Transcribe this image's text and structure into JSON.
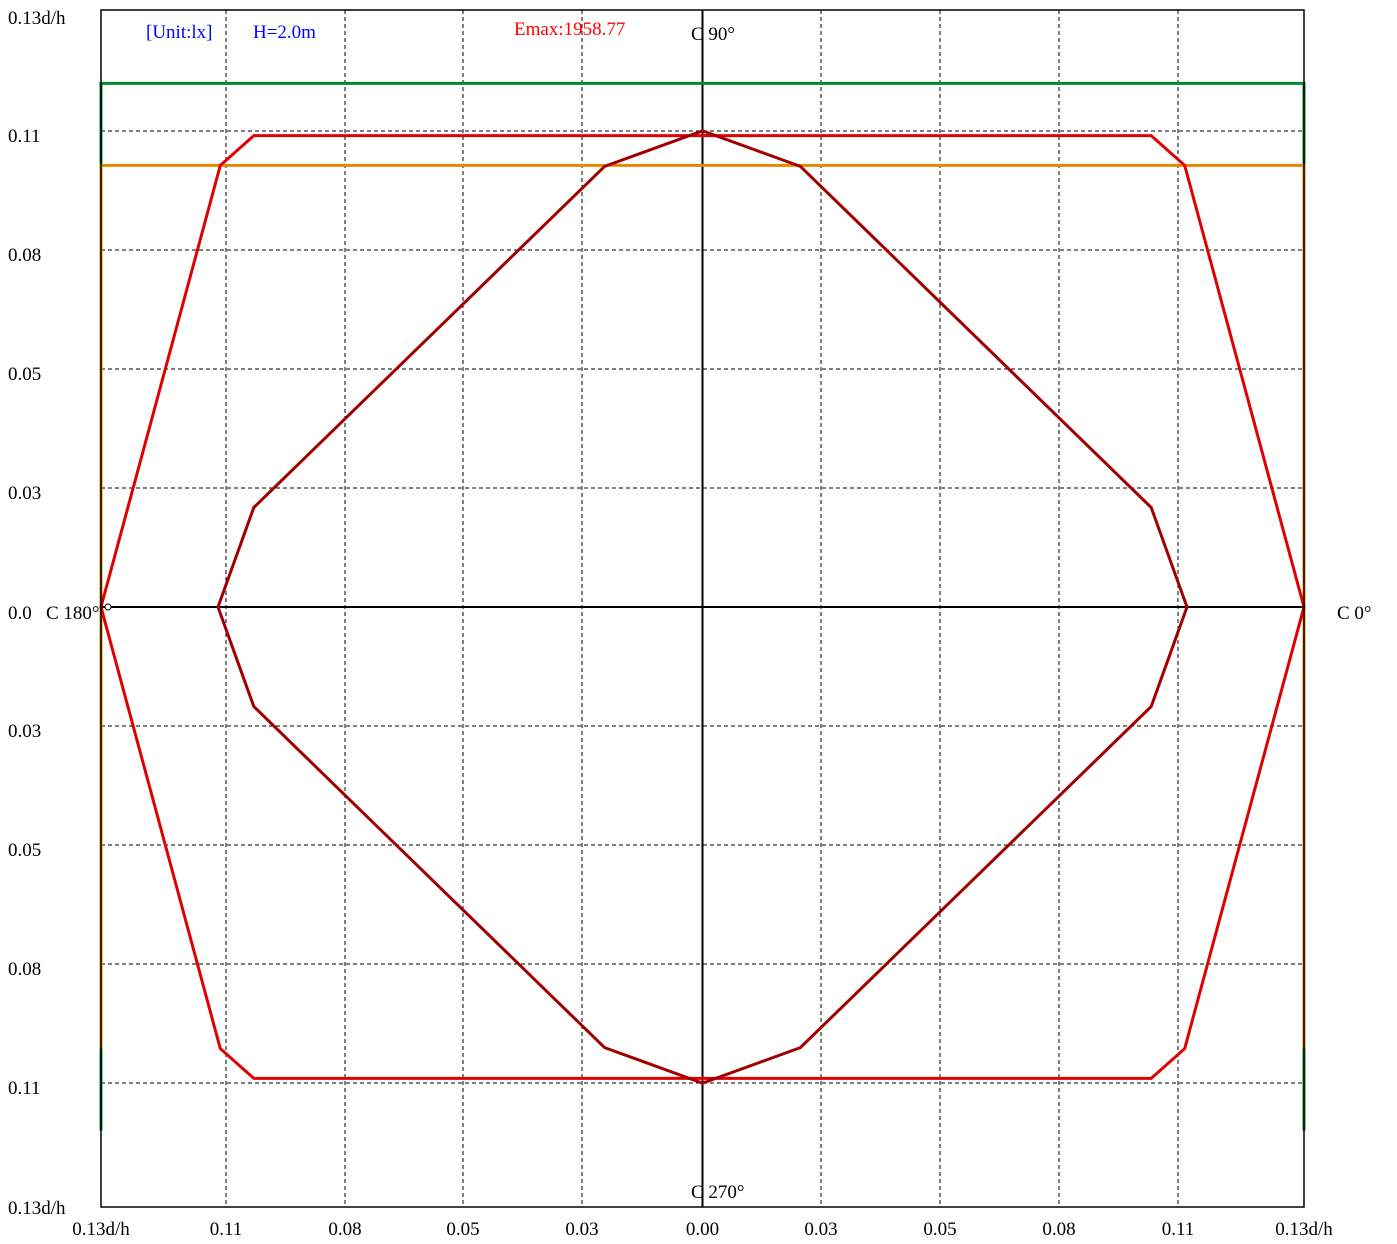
{
  "chart_data": {
    "type": "line",
    "title": "",
    "unit_label": "[Unit:lx]",
    "height_label": "H=2.0m",
    "emax_label": "Emax:1958.77",
    "direction_labels": {
      "top": "C 90°",
      "bottom": "C 270°",
      "right": "C 0°",
      "left": "C 180°"
    },
    "x_tick_labels": [
      "0.13d/h",
      "0.11",
      "0.08",
      "0.05",
      "0.03",
      "0.00",
      "0.03",
      "0.05",
      "0.08",
      "0.11",
      "0.13d/h"
    ],
    "y_tick_labels": [
      "0.13d/h",
      "0.11",
      "0.08",
      "0.05",
      "0.03",
      "0.0",
      "0.03",
      "0.05",
      "0.08",
      "0.11",
      "0.13d/h"
    ],
    "xlim": [
      -0.126,
      0.126
    ],
    "ylim": [
      -0.126,
      0.126
    ],
    "grid": true,
    "colors": {
      "unit_text": "#0000ff",
      "emax_text": "#ff0000",
      "green": "#008a2e",
      "orange": "#e58a00",
      "red": "#e00000",
      "darkred": "#a00000"
    },
    "series": [
      {
        "color": "#008a2e",
        "closed": false,
        "points": [
          [
            -0.126,
            -0.1105
          ],
          [
            -0.126,
            0.1105
          ],
          [
            0.126,
            0.1105
          ],
          [
            0.126,
            -0.1105
          ]
        ]
      },
      {
        "color": "#e58a00",
        "closed": false,
        "points": [
          [
            -0.126,
            -0.0932
          ],
          [
            -0.126,
            0.0932
          ],
          [
            0.126,
            0.0932
          ],
          [
            0.126,
            -0.0932
          ]
        ]
      },
      {
        "color": "#e00000",
        "closed": true,
        "points": [
          [
            0.126,
            0
          ],
          [
            0.101,
            0.0932
          ],
          [
            0.094,
            0.0995
          ],
          [
            -0.094,
            0.0995
          ],
          [
            -0.101,
            0.0932
          ],
          [
            -0.126,
            0
          ],
          [
            -0.101,
            -0.0932
          ],
          [
            -0.094,
            -0.0995
          ],
          [
            0.094,
            -0.0995
          ],
          [
            0.101,
            -0.0932
          ]
        ]
      },
      {
        "color": "#a00000",
        "closed": true,
        "points": [
          [
            0.1015,
            0
          ],
          [
            0.094,
            0.021
          ],
          [
            0.0205,
            0.093
          ],
          [
            0,
            0.1005
          ],
          [
            -0.0205,
            0.093
          ],
          [
            -0.094,
            0.021
          ],
          [
            -0.1015,
            0
          ],
          [
            -0.094,
            -0.021
          ],
          [
            -0.0205,
            -0.093
          ],
          [
            0,
            -0.1005
          ],
          [
            0.0205,
            -0.093
          ],
          [
            0.094,
            -0.021
          ]
        ]
      }
    ]
  }
}
